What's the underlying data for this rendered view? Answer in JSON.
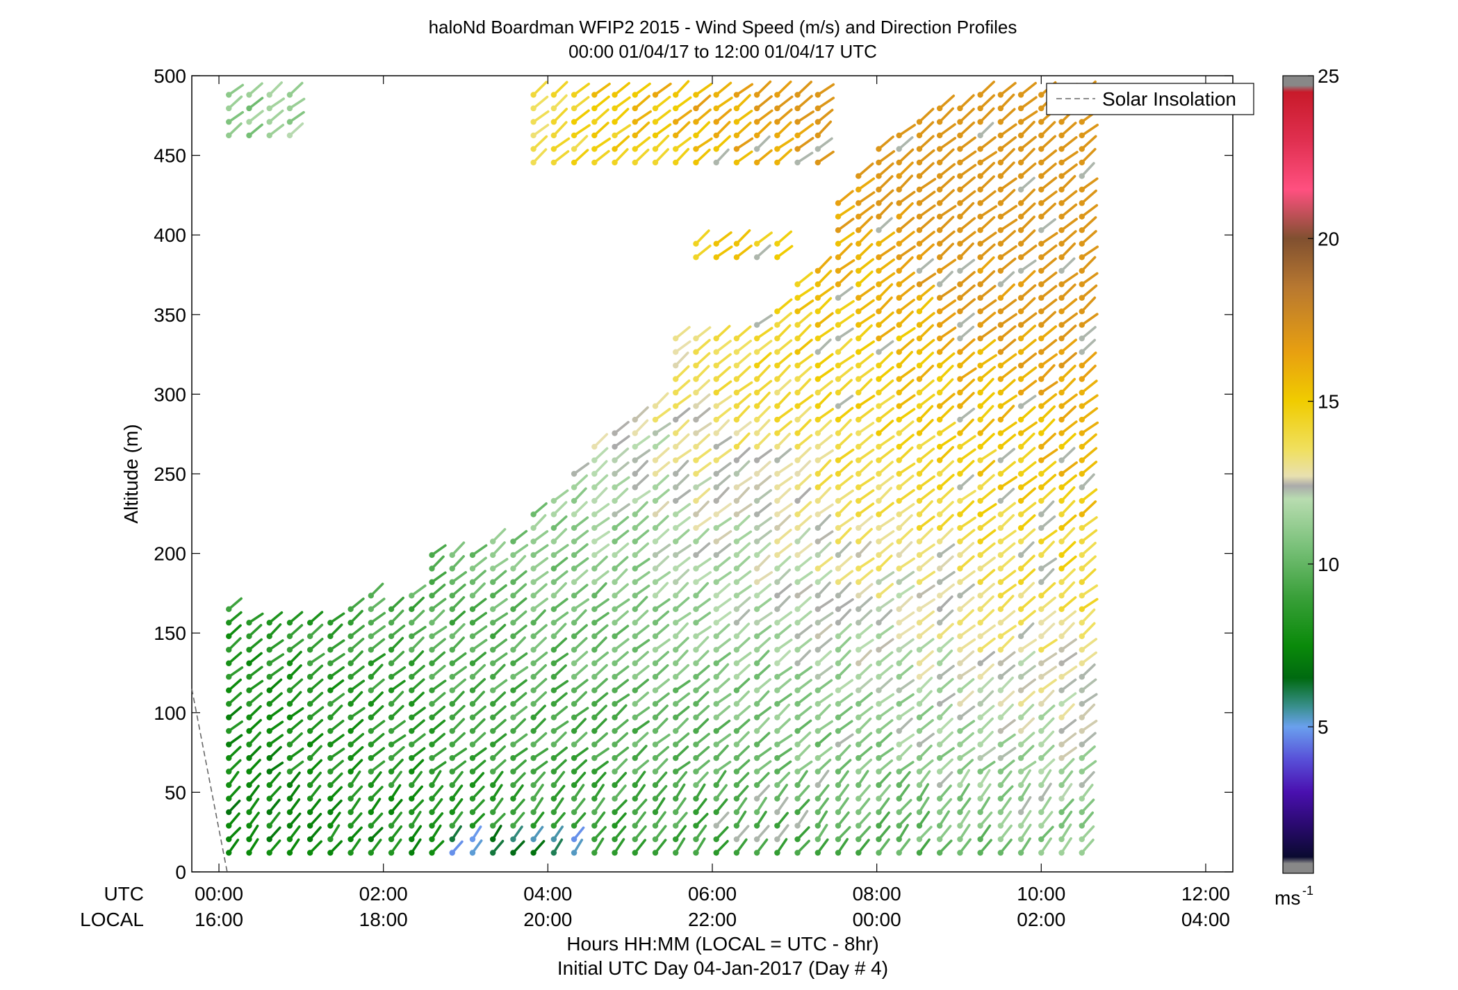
{
  "chart_data": {
    "type": "wind-barb-profile",
    "title": "haloNd Boardman WFIP2 2015 - Wind Speed (m/s) and Direction Profiles",
    "subtitle": "00:00 01/04/17 to 12:00 01/04/17  UTC",
    "ylabel": "Altitude (m)",
    "xlabel": "Hours HH:MM  (LOCAL = UTC - 8hr)",
    "xlabel2": "Initial UTC Day 04-Jan-2017 (Day # 4)",
    "row_labels": [
      "UTC",
      "LOCAL"
    ],
    "ylim": [
      0,
      500
    ],
    "yticks": [
      0,
      50,
      100,
      150,
      200,
      250,
      300,
      350,
      400,
      450,
      500
    ],
    "xlim_hours": [
      -0.33,
      12.33
    ],
    "xticks": [
      {
        "hour": 0,
        "utc": "00:00",
        "local": "16:00"
      },
      {
        "hour": 2,
        "utc": "02:00",
        "local": "18:00"
      },
      {
        "hour": 4,
        "utc": "04:00",
        "local": "20:00"
      },
      {
        "hour": 6,
        "utc": "06:00",
        "local": "22:00"
      },
      {
        "hour": 8,
        "utc": "08:00",
        "local": "00:00"
      },
      {
        "hour": 10,
        "utc": "10:00",
        "local": "02:00"
      },
      {
        "hour": 12,
        "utc": "12:00",
        "local": "04:00"
      }
    ],
    "grid": false,
    "legend": {
      "position": "top-right",
      "entries": [
        {
          "label": "Solar Insolation",
          "style": "dashed",
          "color": "#666666"
        }
      ]
    },
    "solar_insolation": {
      "hours": [
        -0.33,
        0.1
      ],
      "altitudes": [
        115,
        0
      ]
    },
    "colorbar": {
      "label": "ms",
      "label_sup": "-1",
      "min": 0.5,
      "max": 25,
      "ticks": [
        5,
        10,
        15,
        20,
        25
      ],
      "stops": [
        {
          "v": 0.5,
          "c": "#888888"
        },
        {
          "v": 0.8,
          "c": "#888888"
        },
        {
          "v": 1.0,
          "c": "#0a0a30"
        },
        {
          "v": 2.0,
          "c": "#2a0a70"
        },
        {
          "v": 3.0,
          "c": "#4a10b0"
        },
        {
          "v": 4.0,
          "c": "#5850d8"
        },
        {
          "v": 5.0,
          "c": "#6aa0ee"
        },
        {
          "v": 5.6,
          "c": "#3a9090"
        },
        {
          "v": 6.5,
          "c": "#006a10"
        },
        {
          "v": 7.5,
          "c": "#0a8a0a"
        },
        {
          "v": 9.0,
          "c": "#3aa03a"
        },
        {
          "v": 10.5,
          "c": "#78c078"
        },
        {
          "v": 12.0,
          "c": "#b8dcb0"
        },
        {
          "v": 12.4,
          "c": "#aaaaaa"
        },
        {
          "v": 12.7,
          "c": "#e8e0b0"
        },
        {
          "v": 13.5,
          "c": "#f0e060"
        },
        {
          "v": 15.0,
          "c": "#f0cc00"
        },
        {
          "v": 16.5,
          "c": "#e8a010"
        },
        {
          "v": 18.5,
          "c": "#b87830"
        },
        {
          "v": 20.0,
          "c": "#805030"
        },
        {
          "v": 21.5,
          "c": "#ff5080"
        },
        {
          "v": 23.0,
          "c": "#e03050"
        },
        {
          "v": 24.5,
          "c": "#c81a2a"
        },
        {
          "v": 24.7,
          "c": "#888888"
        },
        {
          "v": 25.0,
          "c": "#888888"
        }
      ]
    },
    "sampling": {
      "first_hour": 0.12,
      "step_hours": 0.247,
      "count": 43,
      "altitudes_step_m": 8.5
    },
    "top_altitude_by_column": [
      172,
      160,
      160,
      160,
      160,
      160,
      172,
      175,
      165,
      175,
      200,
      205,
      205,
      210,
      215,
      225,
      235,
      255,
      270,
      280,
      290,
      300,
      310,
      315,
      330,
      340,
      350,
      360,
      370,
      380,
      420,
      440,
      455,
      465,
      475,
      480,
      485,
      490,
      490,
      490,
      490,
      490,
      490
    ],
    "upper_patches": [
      {
        "cols": [
          0,
          1,
          2,
          3
        ],
        "alt_range": [
          460,
          495
        ]
      },
      {
        "cols": [
          15,
          16,
          17,
          18,
          19,
          20,
          21,
          22,
          23,
          24,
          25,
          26,
          27,
          28,
          29
        ],
        "alt_range": [
          440,
          495
        ]
      },
      {
        "cols": [
          22,
          23,
          24,
          25,
          26
        ],
        "alt_range": [
          300,
          335
        ]
      },
      {
        "cols": [
          23,
          24,
          25,
          26,
          27
        ],
        "alt_range": [
          385,
          400
        ]
      }
    ],
    "wind_speed_model_ms": {
      "surface": 7.5,
      "note": "speed grows with height and with time; >13 m/s aloft after 07:00 UTC",
      "min": 4.8,
      "max": 17
    },
    "wind_direction": "mostly from the southwest (barbs point up-right)"
  }
}
